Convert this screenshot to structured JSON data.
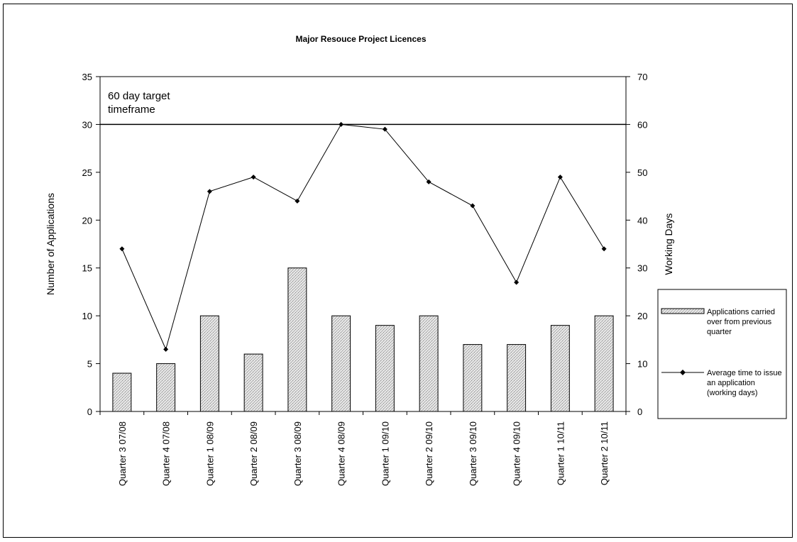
{
  "chart_data": {
    "type": "bar",
    "title": "Major Resouce  Project Licences",
    "ylabel": "Number of Applications",
    "y2label": "Working Days",
    "ylim": [
      0,
      35
    ],
    "y2lim": [
      0,
      70
    ],
    "yticks": [
      0,
      5,
      10,
      15,
      20,
      25,
      30,
      35
    ],
    "y2ticks": [
      0,
      10,
      20,
      30,
      40,
      50,
      60,
      70
    ],
    "categories": [
      "Quarter 3 07/08",
      "Quarter 4 07/08",
      "Quarter 1 08/09",
      "Quarter 2 08/09",
      "Quarter 3 08/09",
      "Quarter 4 08/09",
      "Quarter 1 09/10",
      "Quarter 2 09/10",
      "Quarter 3 09/10",
      "Quarter 4 09/10",
      "Quarter 1 10/11",
      "Quarter 2 10/11"
    ],
    "series": [
      {
        "name": "Applications carried over from previous quarter",
        "kind": "bar",
        "axis": "left",
        "values": [
          4,
          5,
          10,
          6,
          15,
          10,
          9,
          10,
          7,
          7,
          9,
          10
        ]
      },
      {
        "name": "Average time to issue an application (working days)",
        "kind": "line",
        "axis": "right",
        "values": [
          34,
          13,
          46,
          49,
          44,
          60,
          59,
          48,
          43,
          27,
          49,
          34
        ]
      }
    ],
    "reference_line": {
      "label": "60 day target timeframe",
      "axis": "right",
      "value": 60
    },
    "legend_position": "right",
    "grid": false
  }
}
